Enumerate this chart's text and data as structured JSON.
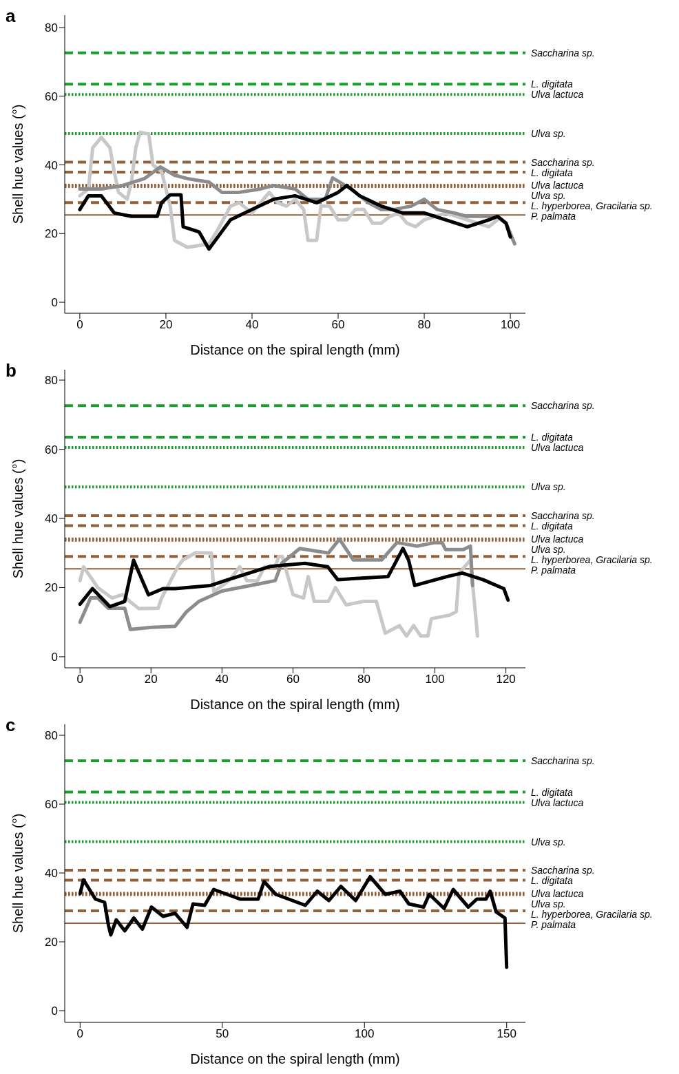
{
  "chart_data": [
    {
      "type": "line",
      "title": "a",
      "xlabel": "Distance on the spiral length (mm)",
      "ylabel": "Shell hue values (°)",
      "xlim": [
        -3.5,
        103.5
      ],
      "xticks": [
        0,
        20,
        40,
        60,
        80,
        100
      ],
      "ylim": [
        -3.2,
        83.6
      ],
      "yticks": [
        0,
        20,
        40,
        60,
        80
      ],
      "grid": false,
      "marker": "none",
      "line_style": "solid",
      "ref_lines": [
        {
          "axis": "y",
          "value": 72.6,
          "label": "Saccharina sp.",
          "color": "#1a9e2e",
          "line_style": "dashed"
        },
        {
          "axis": "y",
          "value": 63.5,
          "label": "L. digitata",
          "color": "#1a9e2e",
          "line_style": "dashed"
        },
        {
          "axis": "y",
          "value": 60.5,
          "label": "Ulva lactuca",
          "color": "#1a9e2e",
          "line_style": "dotted"
        },
        {
          "axis": "y",
          "value": 49.1,
          "label": "Ulva sp.",
          "color": "#1a9e2e",
          "line_style": "dotted"
        },
        {
          "axis": "y",
          "value": 40.8,
          "label": "Saccharina sp.",
          "color": "#94603a",
          "line_style": "dashed"
        },
        {
          "axis": "y",
          "value": 37.9,
          "label": "L. digitata",
          "color": "#94603a",
          "line_style": "dashed"
        },
        {
          "axis": "y",
          "value": 34.1,
          "label": "Ulva lactuca",
          "color": "#94603a",
          "line_style": "dotted"
        },
        {
          "axis": "y",
          "value": 33.7,
          "label": "Ulva sp.",
          "color": "#94603a",
          "line_style": "dotted"
        },
        {
          "axis": "y",
          "value": 29.0,
          "label": "L. hyperborea, Gracilaria sp.",
          "color": "#94603a",
          "line_style": "dashed"
        },
        {
          "axis": "y",
          "value": 25.4,
          "label": "P. palmata",
          "color": "#94603a",
          "line_style": "solid"
        }
      ],
      "series": [
        {
          "color": "#c8c8c8",
          "x": [
            0,
            2,
            3,
            5,
            7,
            8,
            9,
            11,
            12,
            13,
            14,
            16,
            17,
            19,
            21,
            22,
            25,
            30,
            32,
            35,
            37,
            40,
            42,
            44,
            46,
            48,
            50,
            52,
            53,
            55,
            56,
            58,
            60,
            62,
            64,
            66,
            68,
            70,
            72,
            74,
            76,
            78,
            80,
            85,
            90,
            95,
            97
          ],
          "values": [
            31,
            33,
            45,
            48,
            45,
            38,
            32,
            30,
            35,
            45,
            49.5,
            49,
            40,
            38,
            28,
            18,
            16,
            17,
            21,
            28,
            29,
            26,
            29,
            32,
            29,
            28,
            30,
            27,
            18,
            18,
            28,
            28,
            24,
            24,
            27,
            27,
            23,
            23,
            25,
            26,
            23,
            22,
            24,
            26,
            24,
            22,
            24
          ]
        },
        {
          "color": "#8c8c8c",
          "x": [
            0,
            5,
            10,
            15,
            18.7,
            22,
            25,
            30,
            33,
            37,
            42,
            45,
            50,
            53,
            57,
            58.7,
            63,
            67,
            70,
            73,
            77,
            80,
            83,
            87,
            90,
            95,
            97,
            99,
            101
          ],
          "values": [
            33,
            33,
            34,
            36,
            39.4,
            37,
            36,
            35,
            32,
            32,
            33,
            34,
            33,
            30,
            30,
            36.2,
            33,
            29,
            27,
            27,
            28,
            30,
            27,
            26,
            25,
            25,
            25,
            23,
            17
          ]
        },
        {
          "color": "#000000",
          "x": [
            0,
            2,
            5,
            8,
            12,
            18,
            19,
            21,
            23.5,
            24,
            27.7,
            30,
            35,
            40,
            45,
            50,
            55,
            60,
            62,
            65,
            70,
            75,
            80,
            85,
            90,
            95,
            97,
            99,
            100
          ],
          "values": [
            27,
            31,
            31,
            26,
            25,
            25,
            29,
            31.3,
            31.3,
            22,
            20.5,
            15.5,
            24,
            27,
            30,
            31,
            29,
            32,
            34,
            31,
            28,
            26,
            26,
            24,
            22,
            24,
            25,
            23,
            19
          ]
        }
      ]
    },
    {
      "type": "line",
      "title": "b",
      "xlabel": "Distance on the spiral length (mm)",
      "ylabel": "Shell hue values (°)",
      "xlim": [
        -4.3,
        125.5
      ],
      "xticks": [
        0,
        20,
        40,
        60,
        80,
        100,
        120
      ],
      "ylim": [
        -3.2,
        83
      ],
      "yticks": [
        0,
        20,
        40,
        60,
        80
      ],
      "grid": false,
      "marker": "none",
      "line_style": "solid",
      "ref_lines": [
        {
          "axis": "y",
          "value": 72.6,
          "label": "Saccharina sp.",
          "color": "#1a9e2e",
          "line_style": "dashed"
        },
        {
          "axis": "y",
          "value": 63.5,
          "label": "L. digitata",
          "color": "#1a9e2e",
          "line_style": "dashed"
        },
        {
          "axis": "y",
          "value": 60.5,
          "label": "Ulva lactuca",
          "color": "#1a9e2e",
          "line_style": "dotted"
        },
        {
          "axis": "y",
          "value": 49.1,
          "label": "Ulva sp.",
          "color": "#1a9e2e",
          "line_style": "dotted"
        },
        {
          "axis": "y",
          "value": 40.8,
          "label": "Saccharina sp.",
          "color": "#94603a",
          "line_style": "dashed"
        },
        {
          "axis": "y",
          "value": 37.9,
          "label": "L. digitata",
          "color": "#94603a",
          "line_style": "dashed"
        },
        {
          "axis": "y",
          "value": 34.1,
          "label": "Ulva lactuca",
          "color": "#94603a",
          "line_style": "dotted"
        },
        {
          "axis": "y",
          "value": 33.7,
          "label": "Ulva sp.",
          "color": "#94603a",
          "line_style": "dotted"
        },
        {
          "axis": "y",
          "value": 29.0,
          "label": "L. hyperborea, Gracilaria sp.",
          "color": "#94603a",
          "line_style": "dashed"
        },
        {
          "axis": "y",
          "value": 25.4,
          "label": "P. palmata",
          "color": "#94603a",
          "line_style": "solid"
        }
      ],
      "series": [
        {
          "color": "#c8c8c8",
          "x": [
            0,
            1,
            5,
            9,
            12,
            14,
            16.6,
            22,
            23,
            27.6,
            29,
            32.6,
            37,
            37.7,
            42,
            45,
            47,
            50,
            52,
            55,
            56,
            57,
            60,
            63,
            64.3,
            66,
            70,
            72,
            75,
            80,
            83.5,
            86,
            90,
            92,
            94,
            96,
            98,
            99,
            104,
            106,
            106.8,
            110,
            112
          ],
          "values": [
            22,
            26,
            20,
            17,
            18,
            16,
            13.9,
            14,
            17,
            26.1,
            28,
            30.1,
            30,
            18.8,
            22,
            26,
            22,
            22,
            26,
            26,
            29,
            29,
            18,
            17,
            23.2,
            16,
            16,
            20,
            15,
            16,
            16,
            6.8,
            9,
            6,
            9,
            6,
            6,
            11,
            12,
            13,
            24.2,
            28,
            6
          ]
        },
        {
          "color": "#8c8c8c",
          "x": [
            0,
            3,
            5,
            8,
            12.6,
            14.2,
            20,
            26.8,
            30,
            33.5,
            40,
            45,
            50,
            55,
            56.8,
            61.9,
            70,
            73.1,
            77,
            80,
            85,
            89.3,
            95,
            100,
            102,
            103,
            108,
            110,
            110.6
          ],
          "values": [
            10,
            17,
            17,
            14,
            14,
            7.9,
            8.5,
            8.8,
            13,
            16,
            19,
            20,
            21,
            22,
            27,
            31.3,
            30,
            34,
            28,
            28,
            28,
            33,
            32,
            33,
            33,
            31,
            31,
            32,
            20.6
          ]
        },
        {
          "color": "#000000",
          "x": [
            0,
            3.5,
            8.4,
            12.6,
            15.1,
            19.3,
            23.4,
            26.8,
            36.8,
            41.8,
            53.5,
            63.4,
            69.8,
            72.6,
            86.8,
            91,
            92.6,
            94.3,
            103.5,
            107.7,
            113.5,
            119.4,
            120.6
          ],
          "values": [
            15.2,
            19.7,
            14.5,
            16,
            27.9,
            17.9,
            19.7,
            19.7,
            20.6,
            22.3,
            26.1,
            27,
            26,
            22.3,
            23.2,
            31.3,
            27.9,
            20.6,
            23.2,
            24.2,
            22.3,
            19.7,
            16.4
          ]
        }
      ]
    },
    {
      "type": "line",
      "title": "c",
      "xlabel": "Distance on the spiral length (mm)",
      "ylabel": "Shell hue values (°)",
      "xlim": [
        -5.4,
        156.6
      ],
      "xticks": [
        0,
        50,
        100,
        150
      ],
      "ylim": [
        -3.4,
        83.2
      ],
      "yticks": [
        0,
        20,
        40,
        60,
        80
      ],
      "grid": false,
      "marker": "none",
      "line_style": "solid",
      "ref_lines": [
        {
          "axis": "y",
          "value": 72.6,
          "label": "Saccharina sp.",
          "color": "#1a9e2e",
          "line_style": "dashed"
        },
        {
          "axis": "y",
          "value": 63.5,
          "label": "L. digitata",
          "color": "#1a9e2e",
          "line_style": "dashed"
        },
        {
          "axis": "y",
          "value": 60.5,
          "label": "Ulva lactuca",
          "color": "#1a9e2e",
          "line_style": "dotted"
        },
        {
          "axis": "y",
          "value": 49.1,
          "label": "Ulva sp.",
          "color": "#1a9e2e",
          "line_style": "dotted"
        },
        {
          "axis": "y",
          "value": 40.8,
          "label": "Saccharina sp.",
          "color": "#94603a",
          "line_style": "dashed"
        },
        {
          "axis": "y",
          "value": 37.9,
          "label": "L. digitata",
          "color": "#94603a",
          "line_style": "dashed"
        },
        {
          "axis": "y",
          "value": 34.1,
          "label": "Ulva lactuca",
          "color": "#94603a",
          "line_style": "dotted"
        },
        {
          "axis": "y",
          "value": 33.7,
          "label": "Ulva sp.",
          "color": "#94603a",
          "line_style": "dotted"
        },
        {
          "axis": "y",
          "value": 29.0,
          "label": "L. hyperborea, Gracilaria sp.",
          "color": "#94603a",
          "line_style": "dashed"
        },
        {
          "axis": "y",
          "value": 25.4,
          "label": "P. palmata",
          "color": "#94603a",
          "line_style": "solid"
        }
      ],
      "series": [
        {
          "color": "#000000",
          "x": [
            0,
            1.2,
            5.4,
            8.6,
            10,
            10.8,
            12.7,
            15.7,
            18.9,
            21.9,
            25.1,
            29.2,
            33.4,
            37.6,
            39.7,
            43.8,
            47,
            56.3,
            62.6,
            64.7,
            68.8,
            79.2,
            83.4,
            87.5,
            91.7,
            96.9,
            102,
            107.3,
            112.5,
            115.6,
            120.8,
            122.8,
            128,
            131.2,
            136.5,
            139.5,
            142.7,
            144.2,
            146.3,
            149.4,
            150
          ],
          "values": [
            34,
            38,
            32.4,
            31.5,
            24.7,
            22,
            26.4,
            23.2,
            26.9,
            23.7,
            30.1,
            27.4,
            28.3,
            24.2,
            31,
            30.6,
            35.2,
            32.4,
            32.4,
            37.5,
            33.8,
            30.6,
            34.7,
            32,
            36.1,
            32,
            38.9,
            33.8,
            34.7,
            31,
            30.1,
            33.8,
            29.7,
            35.2,
            30.1,
            32.4,
            32.4,
            34.7,
            28.7,
            26.9,
            12.6
          ]
        }
      ]
    }
  ]
}
